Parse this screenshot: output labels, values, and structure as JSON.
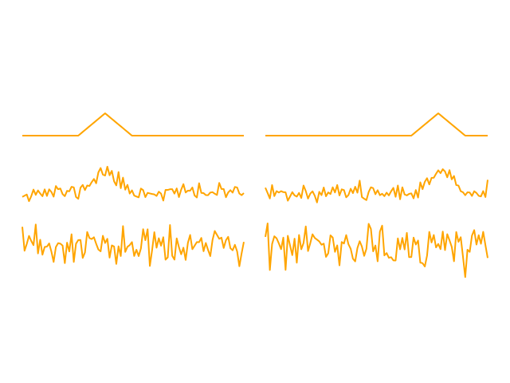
{
  "chart_data": [
    {
      "type": "line",
      "panel": "left",
      "color": "#FFA500",
      "grid": false,
      "axes_visible": false,
      "n_points": 100,
      "traces": [
        {
          "kind": "clean",
          "baseline": 0.0,
          "peak_height": 1.0,
          "peak_center_index": 37,
          "peak_half_width": 12
        },
        {
          "kind": "noisy",
          "baseline": 0.0,
          "peak_height": 1.0,
          "peak_center_index": 37,
          "peak_half_width": 12,
          "noise_std": 0.18,
          "seed": 11
        },
        {
          "kind": "noise-only",
          "baseline": 0.0,
          "noise_std": 1.0,
          "seed": 23
        }
      ]
    },
    {
      "type": "line",
      "panel": "right",
      "color": "#FFA500",
      "grid": false,
      "axes_visible": false,
      "n_points": 100,
      "traces": [
        {
          "kind": "clean",
          "baseline": 0.0,
          "peak_height": 1.0,
          "peak_center_index": 77,
          "peak_half_width": 12
        },
        {
          "kind": "noisy",
          "baseline": 0.0,
          "peak_height": 1.0,
          "peak_center_index": 77,
          "peak_half_width": 12,
          "noise_std": 0.18,
          "seed": 37
        },
        {
          "kind": "noise-only",
          "baseline": 0.0,
          "noise_std": 1.0,
          "seed": 53
        }
      ]
    }
  ]
}
